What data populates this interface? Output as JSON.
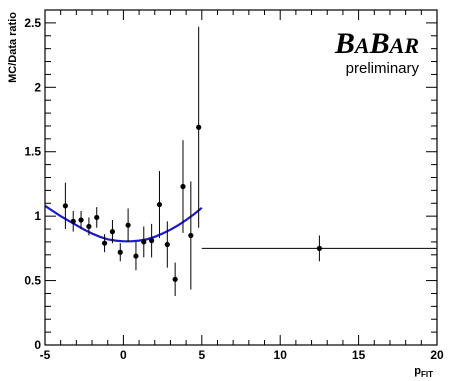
{
  "chart_data": {
    "type": "scatter",
    "title": "",
    "xlabel": "p",
    "xlabel_sub": "FIT",
    "ylabel": "MC/Data ratio",
    "xlim": [
      -5,
      20
    ],
    "ylim": [
      0,
      2.6
    ],
    "x_ticks": [
      -5,
      0,
      5,
      10,
      15,
      20
    ],
    "x_tick_labels": [
      "-5",
      "0",
      "5",
      "10",
      "15",
      "20"
    ],
    "y_ticks": [
      0,
      0.5,
      1,
      1.5,
      2,
      2.5
    ],
    "y_tick_labels": [
      "0",
      "0.5",
      "1",
      "1.5",
      "2",
      "2.5"
    ],
    "grid": false,
    "logo": {
      "parts": [
        "B",
        "A",
        "B",
        "A",
        "R"
      ],
      "subtitle": "preliminary"
    },
    "points": [
      {
        "x": -3.7,
        "y": 1.08,
        "yerr": 0.18
      },
      {
        "x": -3.2,
        "y": 0.96,
        "yerr": 0.08
      },
      {
        "x": -2.7,
        "y": 0.97,
        "yerr": 0.07
      },
      {
        "x": -2.2,
        "y": 0.92,
        "yerr": 0.07
      },
      {
        "x": -1.7,
        "y": 0.99,
        "yerr": 0.08
      },
      {
        "x": -1.2,
        "y": 0.79,
        "yerr": 0.07
      },
      {
        "x": -0.7,
        "y": 0.88,
        "yerr": 0.09
      },
      {
        "x": -0.2,
        "y": 0.72,
        "yerr": 0.07
      },
      {
        "x": 0.3,
        "y": 0.93,
        "yerr": 0.13
      },
      {
        "x": 0.8,
        "y": 0.69,
        "yerr": 0.11
      },
      {
        "x": 1.3,
        "y": 0.8,
        "yerr": 0.12
      },
      {
        "x": 1.8,
        "y": 0.81,
        "yerr": 0.13
      },
      {
        "x": 2.3,
        "y": 1.09,
        "yerr": 0.26
      },
      {
        "x": 2.8,
        "y": 0.78,
        "yerr": 0.18
      },
      {
        "x": 3.3,
        "y": 0.51,
        "yerr": 0.13
      },
      {
        "x": 3.8,
        "y": 1.23,
        "yerr": 0.36
      },
      {
        "x": 4.3,
        "y": 0.85,
        "yerr": 0.42
      },
      {
        "x": 4.8,
        "y": 1.69,
        "yerr": 0.78
      },
      {
        "x": 12.5,
        "y": 0.75,
        "yerr": 0.1,
        "xerr_low": 7.5,
        "xerr_high": 7.5
      }
    ],
    "fit_curve": {
      "color": "#1a1acc",
      "x": [
        -5,
        -4.5,
        -4,
        -3.5,
        -3,
        -2.5,
        -2,
        -1.5,
        -1,
        -0.5,
        0,
        0.5,
        1,
        1.5,
        2,
        2.5,
        3,
        3.5,
        4,
        4.5,
        5
      ],
      "y": [
        1.08,
        1.04,
        1.0,
        0.965,
        0.93,
        0.895,
        0.865,
        0.84,
        0.82,
        0.81,
        0.805,
        0.805,
        0.81,
        0.82,
        0.84,
        0.865,
        0.895,
        0.93,
        0.97,
        1.015,
        1.065
      ]
    }
  }
}
